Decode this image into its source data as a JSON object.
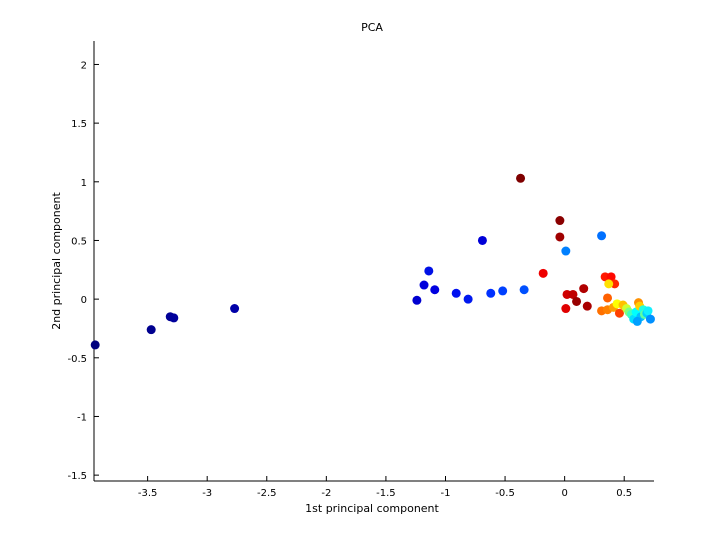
{
  "chart_data": {
    "type": "scatter",
    "title": "PCA",
    "xlabel": "1st principal component",
    "ylabel": "2nd principal component",
    "xlim": [
      -3.95,
      0.75
    ],
    "ylim": [
      -1.55,
      2.2
    ],
    "xticks": [
      -3.5,
      -3,
      -2.5,
      -2,
      -1.5,
      -1,
      -0.5,
      0,
      0.5
    ],
    "yticks": [
      -1.5,
      -1,
      -0.5,
      0,
      0.5,
      1,
      1.5,
      2
    ],
    "xtick_labels": [
      "-3.5",
      "-3",
      "-2.5",
      "-2",
      "-1.5",
      "-1",
      "-0.5",
      "0",
      "0.5"
    ],
    "ytick_labels": [
      "-1.5",
      "-1",
      "-0.5",
      "0",
      "0.5",
      "1",
      "1.5",
      "2"
    ],
    "grid": false,
    "points": [
      {
        "x": -3.94,
        "y": -0.39,
        "color": "#00007f"
      },
      {
        "x": -3.47,
        "y": -0.26,
        "color": "#00008f"
      },
      {
        "x": -3.31,
        "y": -0.15,
        "color": "#000096"
      },
      {
        "x": -3.28,
        "y": -0.16,
        "color": "#00009c"
      },
      {
        "x": -2.77,
        "y": -0.08,
        "color": "#0000a8"
      },
      {
        "x": -1.24,
        "y": -0.01,
        "color": "#0000d0"
      },
      {
        "x": -1.18,
        "y": 0.12,
        "color": "#0000dc"
      },
      {
        "x": -1.14,
        "y": 0.24,
        "color": "#0010e6"
      },
      {
        "x": -1.09,
        "y": 0.08,
        "color": "#0000e0"
      },
      {
        "x": -0.91,
        "y": 0.05,
        "color": "#0010f0"
      },
      {
        "x": -0.81,
        "y": 0.0,
        "color": "#0018ef"
      },
      {
        "x": -0.69,
        "y": 0.5,
        "color": "#0000d8"
      },
      {
        "x": -0.62,
        "y": 0.05,
        "color": "#0030ff"
      },
      {
        "x": -0.52,
        "y": 0.07,
        "color": "#0040ff"
      },
      {
        "x": -0.34,
        "y": 0.08,
        "color": "#0050ff"
      },
      {
        "x": -0.37,
        "y": 1.03,
        "color": "#7f0000"
      },
      {
        "x": -0.04,
        "y": 0.67,
        "color": "#8a0000"
      },
      {
        "x": -0.04,
        "y": 0.53,
        "color": "#a00000"
      },
      {
        "x": 0.01,
        "y": 0.41,
        "color": "#0080ff"
      },
      {
        "x": 0.31,
        "y": 0.54,
        "color": "#0070ff"
      },
      {
        "x": -0.18,
        "y": 0.22,
        "color": "#ee0000"
      },
      {
        "x": 0.16,
        "y": 0.09,
        "color": "#b00000"
      },
      {
        "x": 0.02,
        "y": 0.04,
        "color": "#d00000"
      },
      {
        "x": 0.07,
        "y": 0.04,
        "color": "#c00000"
      },
      {
        "x": 0.1,
        "y": -0.02,
        "color": "#990000"
      },
      {
        "x": 0.19,
        "y": -0.06,
        "color": "#aa0000"
      },
      {
        "x": 0.01,
        "y": -0.08,
        "color": "#e00000"
      },
      {
        "x": 0.34,
        "y": 0.19,
        "color": "#ff1800"
      },
      {
        "x": 0.39,
        "y": 0.19,
        "color": "#ff0800"
      },
      {
        "x": 0.42,
        "y": 0.13,
        "color": "#ff2800"
      },
      {
        "x": 0.37,
        "y": 0.13,
        "color": "#ffe000"
      },
      {
        "x": 0.36,
        "y": 0.01,
        "color": "#ff6000"
      },
      {
        "x": 0.31,
        "y": -0.1,
        "color": "#ff7000"
      },
      {
        "x": 0.36,
        "y": -0.09,
        "color": "#ff8000"
      },
      {
        "x": 0.41,
        "y": -0.07,
        "color": "#ffa000"
      },
      {
        "x": 0.44,
        "y": -0.04,
        "color": "#ffff00"
      },
      {
        "x": 0.46,
        "y": -0.12,
        "color": "#ff4000"
      },
      {
        "x": 0.49,
        "y": -0.05,
        "color": "#ffc000"
      },
      {
        "x": 0.52,
        "y": -0.08,
        "color": "#d0ff30"
      },
      {
        "x": 0.54,
        "y": -0.11,
        "color": "#80ff80"
      },
      {
        "x": 0.56,
        "y": -0.13,
        "color": "#40ffc0"
      },
      {
        "x": 0.58,
        "y": -0.17,
        "color": "#00e0ff"
      },
      {
        "x": 0.6,
        "y": -0.11,
        "color": "#00ffff"
      },
      {
        "x": 0.62,
        "y": -0.03,
        "color": "#ff9000"
      },
      {
        "x": 0.63,
        "y": -0.06,
        "color": "#ffd000"
      },
      {
        "x": 0.64,
        "y": -0.15,
        "color": "#00c0ff"
      },
      {
        "x": 0.66,
        "y": -0.09,
        "color": "#20ffe0"
      },
      {
        "x": 0.67,
        "y": -0.13,
        "color": "#60ffa0"
      },
      {
        "x": 0.69,
        "y": -0.12,
        "color": "#00d0ff"
      },
      {
        "x": 0.7,
        "y": -0.1,
        "color": "#10f0ff"
      },
      {
        "x": 0.72,
        "y": -0.17,
        "color": "#0090ff"
      },
      {
        "x": 0.61,
        "y": -0.19,
        "color": "#00a0ff"
      }
    ]
  }
}
